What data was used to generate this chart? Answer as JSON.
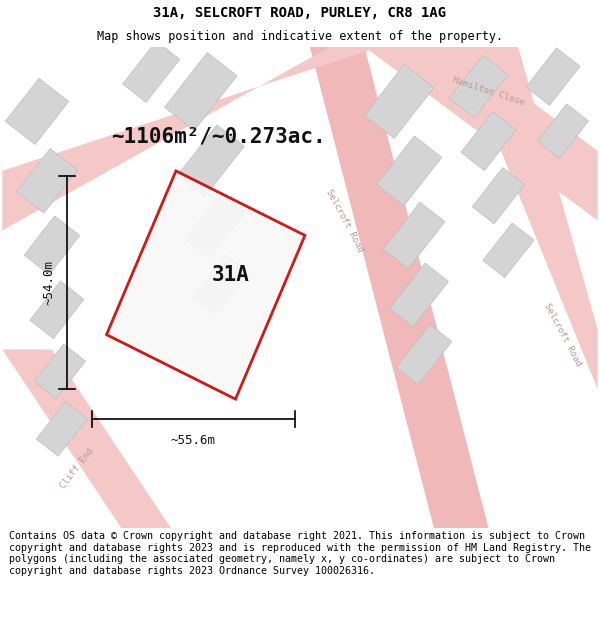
{
  "title": "31A, SELCROFT ROAD, PURLEY, CR8 1AG",
  "subtitle": "Map shows position and indicative extent of the property.",
  "footer": "Contains OS data © Crown copyright and database right 2021. This information is subject to Crown copyright and database rights 2023 and is reproduced with the permission of HM Land Registry. The polygons (including the associated geometry, namely x, y co-ordinates) are subject to Crown copyright and database rights 2023 Ordnance Survey 100026316.",
  "area_label": "~1106m²/~0.273ac.",
  "width_label": "~55.6m",
  "height_label": "~54.0m",
  "plot_label": "31A",
  "road_color_light": "#f5c8c8",
  "road_color_mid": "#f0b8b8",
  "building_color": "#d4d4d4",
  "building_edge": "#bebebe",
  "plot_outline_color": "#cc0000",
  "plot_fill_color": "#f8f8f8",
  "map_bg": "#eeeeee",
  "title_fontsize": 10,
  "subtitle_fontsize": 8.5,
  "footer_fontsize": 7.2,
  "area_label_fontsize": 15,
  "dim_label_fontsize": 9,
  "plot_label_fontsize": 15
}
